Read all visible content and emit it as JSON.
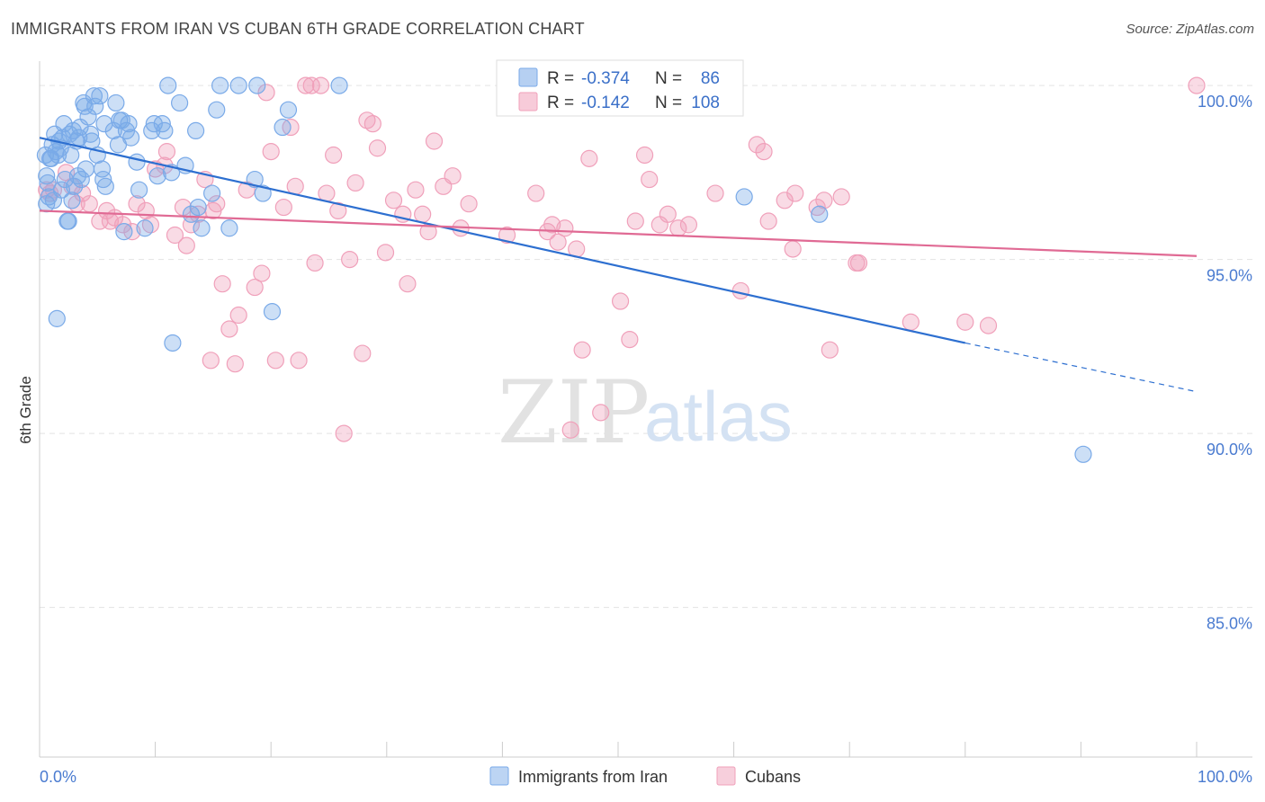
{
  "header": {
    "title": "IMMIGRANTS FROM IRAN VS CUBAN 6TH GRADE CORRELATION CHART",
    "source": "Source: ZipAtlas.com"
  },
  "watermark": {
    "zip": "ZIP",
    "atlas": "atlas"
  },
  "legend": {
    "r_label": "R =",
    "n_label": "N =",
    "entries": [
      {
        "name": "Immigrants from Iran",
        "r": "-0.374",
        "n": "86",
        "color": "#7aaae8"
      },
      {
        "name": "Cubans",
        "r": "-0.142",
        "n": "108",
        "color": "#f0a0ba"
      }
    ]
  },
  "chart_data": {
    "type": "scatter",
    "ylabel": "6th Grade",
    "xlim": [
      0,
      100
    ],
    "ylim": [
      80.7,
      100.7
    ],
    "x_tick_labels": [
      {
        "value": 0,
        "label": "0.0%"
      },
      {
        "value": 100,
        "label": "100.0%"
      }
    ],
    "y_ticks": [
      {
        "value": 100,
        "label": "100.0%"
      },
      {
        "value": 95,
        "label": "95.0%"
      },
      {
        "value": 90,
        "label": "90.0%"
      },
      {
        "value": 85,
        "label": "85.0%"
      }
    ],
    "grid": "horizontal dashed",
    "legend_position": "top-center",
    "series": [
      {
        "name": "Immigrants from Iran",
        "color": "#7aaae8",
        "trend_color": "#2d6fd0",
        "trend": {
          "x0": 0,
          "y0": 98.5,
          "x1": 80,
          "y1": 92.6,
          "dashed_to_x": 100,
          "dashed_to_y": 91.2
        },
        "points": [
          [
            0.5,
            98.0
          ],
          [
            0.6,
            97.4
          ],
          [
            0.7,
            97.2
          ],
          [
            0.8,
            96.8
          ],
          [
            0.9,
            97.9
          ],
          [
            1.0,
            97.9
          ],
          [
            1.1,
            98.3
          ],
          [
            1.2,
            96.7
          ],
          [
            1.3,
            98.6
          ],
          [
            1.4,
            98.1
          ],
          [
            1.6,
            98.0
          ],
          [
            1.7,
            98.4
          ],
          [
            1.8,
            98.2
          ],
          [
            2.0,
            98.5
          ],
          [
            2.1,
            98.9
          ],
          [
            2.2,
            97.3
          ],
          [
            2.4,
            96.1
          ],
          [
            2.5,
            96.1
          ],
          [
            2.6,
            98.6
          ],
          [
            2.7,
            98.0
          ],
          [
            2.8,
            96.7
          ],
          [
            3.0,
            97.1
          ],
          [
            3.2,
            98.4
          ],
          [
            3.4,
            98.5
          ],
          [
            3.5,
            98.8
          ],
          [
            3.6,
            97.3
          ],
          [
            3.8,
            99.5
          ],
          [
            3.9,
            99.4
          ],
          [
            4.0,
            97.6
          ],
          [
            4.2,
            99.1
          ],
          [
            4.4,
            98.6
          ],
          [
            4.5,
            98.4
          ],
          [
            4.7,
            99.7
          ],
          [
            4.8,
            99.4
          ],
          [
            5.0,
            98.0
          ],
          [
            5.2,
            99.7
          ],
          [
            5.4,
            97.6
          ],
          [
            5.5,
            97.3
          ],
          [
            5.7,
            97.1
          ],
          [
            6.4,
            98.7
          ],
          [
            6.6,
            99.5
          ],
          [
            6.8,
            98.3
          ],
          [
            6.9,
            99.0
          ],
          [
            7.1,
            99.0
          ],
          [
            7.3,
            95.8
          ],
          [
            7.5,
            98.7
          ],
          [
            7.7,
            98.9
          ],
          [
            7.9,
            98.5
          ],
          [
            8.4,
            97.8
          ],
          [
            9.1,
            95.9
          ],
          [
            9.7,
            98.7
          ],
          [
            9.9,
            98.9
          ],
          [
            10.2,
            97.4
          ],
          [
            10.6,
            98.9
          ],
          [
            10.8,
            98.7
          ],
          [
            11.1,
            100.0
          ],
          [
            11.4,
            97.5
          ],
          [
            11.5,
            92.6
          ],
          [
            12.1,
            99.5
          ],
          [
            12.6,
            97.7
          ],
          [
            13.1,
            96.3
          ],
          [
            13.5,
            98.7
          ],
          [
            13.7,
            96.5
          ],
          [
            14.0,
            95.9
          ],
          [
            14.9,
            96.9
          ],
          [
            15.3,
            99.3
          ],
          [
            15.6,
            100.0
          ],
          [
            16.4,
            95.9
          ],
          [
            17.2,
            100.0
          ],
          [
            18.6,
            97.3
          ],
          [
            18.8,
            100.0
          ],
          [
            19.3,
            96.9
          ],
          [
            20.1,
            93.5
          ],
          [
            21.0,
            98.8
          ],
          [
            21.5,
            99.3
          ],
          [
            25.9,
            100.0
          ],
          [
            60.9,
            96.8
          ],
          [
            67.4,
            96.3
          ],
          [
            90.2,
            89.4
          ],
          [
            1.5,
            93.3
          ],
          [
            0.6,
            96.6
          ],
          [
            1.9,
            97.0
          ],
          [
            2.9,
            98.7
          ],
          [
            3.3,
            97.4
          ],
          [
            5.6,
            98.9
          ],
          [
            8.6,
            97.0
          ]
        ]
      },
      {
        "name": "Cubans",
        "color": "#f0a0ba",
        "trend_color": "#e06a94",
        "trend": {
          "x0": 0,
          "y0": 96.4,
          "x1": 100,
          "y1": 95.1
        },
        "points": [
          [
            0.6,
            97.0
          ],
          [
            0.9,
            96.9
          ],
          [
            1.2,
            97.0
          ],
          [
            2.3,
            97.5
          ],
          [
            2.8,
            97.1
          ],
          [
            3.2,
            96.6
          ],
          [
            4.3,
            96.6
          ],
          [
            5.2,
            96.1
          ],
          [
            5.8,
            96.4
          ],
          [
            6.5,
            96.2
          ],
          [
            7.2,
            96.0
          ],
          [
            8.0,
            95.8
          ],
          [
            8.4,
            96.6
          ],
          [
            9.2,
            96.4
          ],
          [
            10.0,
            97.6
          ],
          [
            10.8,
            97.7
          ],
          [
            11.0,
            98.1
          ],
          [
            11.7,
            95.7
          ],
          [
            12.4,
            96.5
          ],
          [
            12.7,
            95.4
          ],
          [
            13.1,
            96.0
          ],
          [
            13.7,
            96.3
          ],
          [
            14.3,
            97.3
          ],
          [
            14.8,
            92.1
          ],
          [
            15.3,
            96.6
          ],
          [
            15.8,
            94.3
          ],
          [
            16.4,
            93.0
          ],
          [
            16.9,
            92.0
          ],
          [
            17.2,
            93.4
          ],
          [
            17.9,
            97.0
          ],
          [
            18.6,
            94.2
          ],
          [
            19.2,
            94.6
          ],
          [
            19.6,
            99.8
          ],
          [
            20.0,
            98.1
          ],
          [
            20.4,
            92.1
          ],
          [
            21.1,
            96.5
          ],
          [
            21.7,
            98.8
          ],
          [
            22.1,
            97.1
          ],
          [
            22.4,
            92.1
          ],
          [
            23.5,
            100.0
          ],
          [
            23.8,
            94.9
          ],
          [
            24.3,
            100.0
          ],
          [
            24.8,
            96.9
          ],
          [
            25.4,
            98.0
          ],
          [
            25.8,
            96.4
          ],
          [
            26.3,
            90.0
          ],
          [
            26.8,
            95.0
          ],
          [
            27.3,
            97.2
          ],
          [
            27.9,
            92.3
          ],
          [
            28.3,
            99.0
          ],
          [
            28.8,
            98.9
          ],
          [
            29.2,
            98.2
          ],
          [
            29.9,
            95.2
          ],
          [
            30.6,
            96.7
          ],
          [
            31.4,
            96.3
          ],
          [
            31.8,
            94.3
          ],
          [
            32.5,
            97.0
          ],
          [
            33.1,
            96.3
          ],
          [
            33.6,
            95.8
          ],
          [
            34.1,
            98.4
          ],
          [
            34.9,
            97.1
          ],
          [
            35.7,
            97.4
          ],
          [
            36.4,
            95.9
          ],
          [
            37.1,
            96.6
          ],
          [
            40.4,
            95.7
          ],
          [
            42.9,
            96.9
          ],
          [
            43.9,
            95.8
          ],
          [
            44.3,
            96.0
          ],
          [
            44.8,
            95.5
          ],
          [
            45.4,
            95.9
          ],
          [
            45.9,
            90.1
          ],
          [
            46.4,
            95.3
          ],
          [
            46.9,
            92.4
          ],
          [
            47.5,
            97.9
          ],
          [
            48.5,
            90.6
          ],
          [
            50.2,
            93.8
          ],
          [
            51.0,
            92.7
          ],
          [
            51.5,
            96.1
          ],
          [
            52.3,
            98.0
          ],
          [
            52.7,
            97.3
          ],
          [
            53.6,
            96.0
          ],
          [
            54.3,
            96.3
          ],
          [
            55.2,
            95.9
          ],
          [
            56.1,
            96.0
          ],
          [
            58.4,
            96.9
          ],
          [
            60.6,
            94.1
          ],
          [
            62.0,
            98.3
          ],
          [
            62.6,
            98.1
          ],
          [
            63.0,
            96.1
          ],
          [
            64.4,
            96.7
          ],
          [
            65.1,
            95.3
          ],
          [
            65.3,
            96.9
          ],
          [
            67.2,
            96.5
          ],
          [
            67.8,
            96.7
          ],
          [
            68.3,
            92.4
          ],
          [
            69.3,
            96.8
          ],
          [
            70.6,
            94.9
          ],
          [
            70.8,
            94.9
          ],
          [
            75.3,
            93.2
          ],
          [
            80.0,
            93.2
          ],
          [
            82.0,
            93.1
          ],
          [
            100.0,
            100.0
          ],
          [
            3.7,
            96.9
          ],
          [
            6.1,
            96.1
          ],
          [
            9.6,
            96.0
          ],
          [
            15.0,
            96.4
          ],
          [
            23.0,
            100.0
          ]
        ]
      }
    ]
  }
}
